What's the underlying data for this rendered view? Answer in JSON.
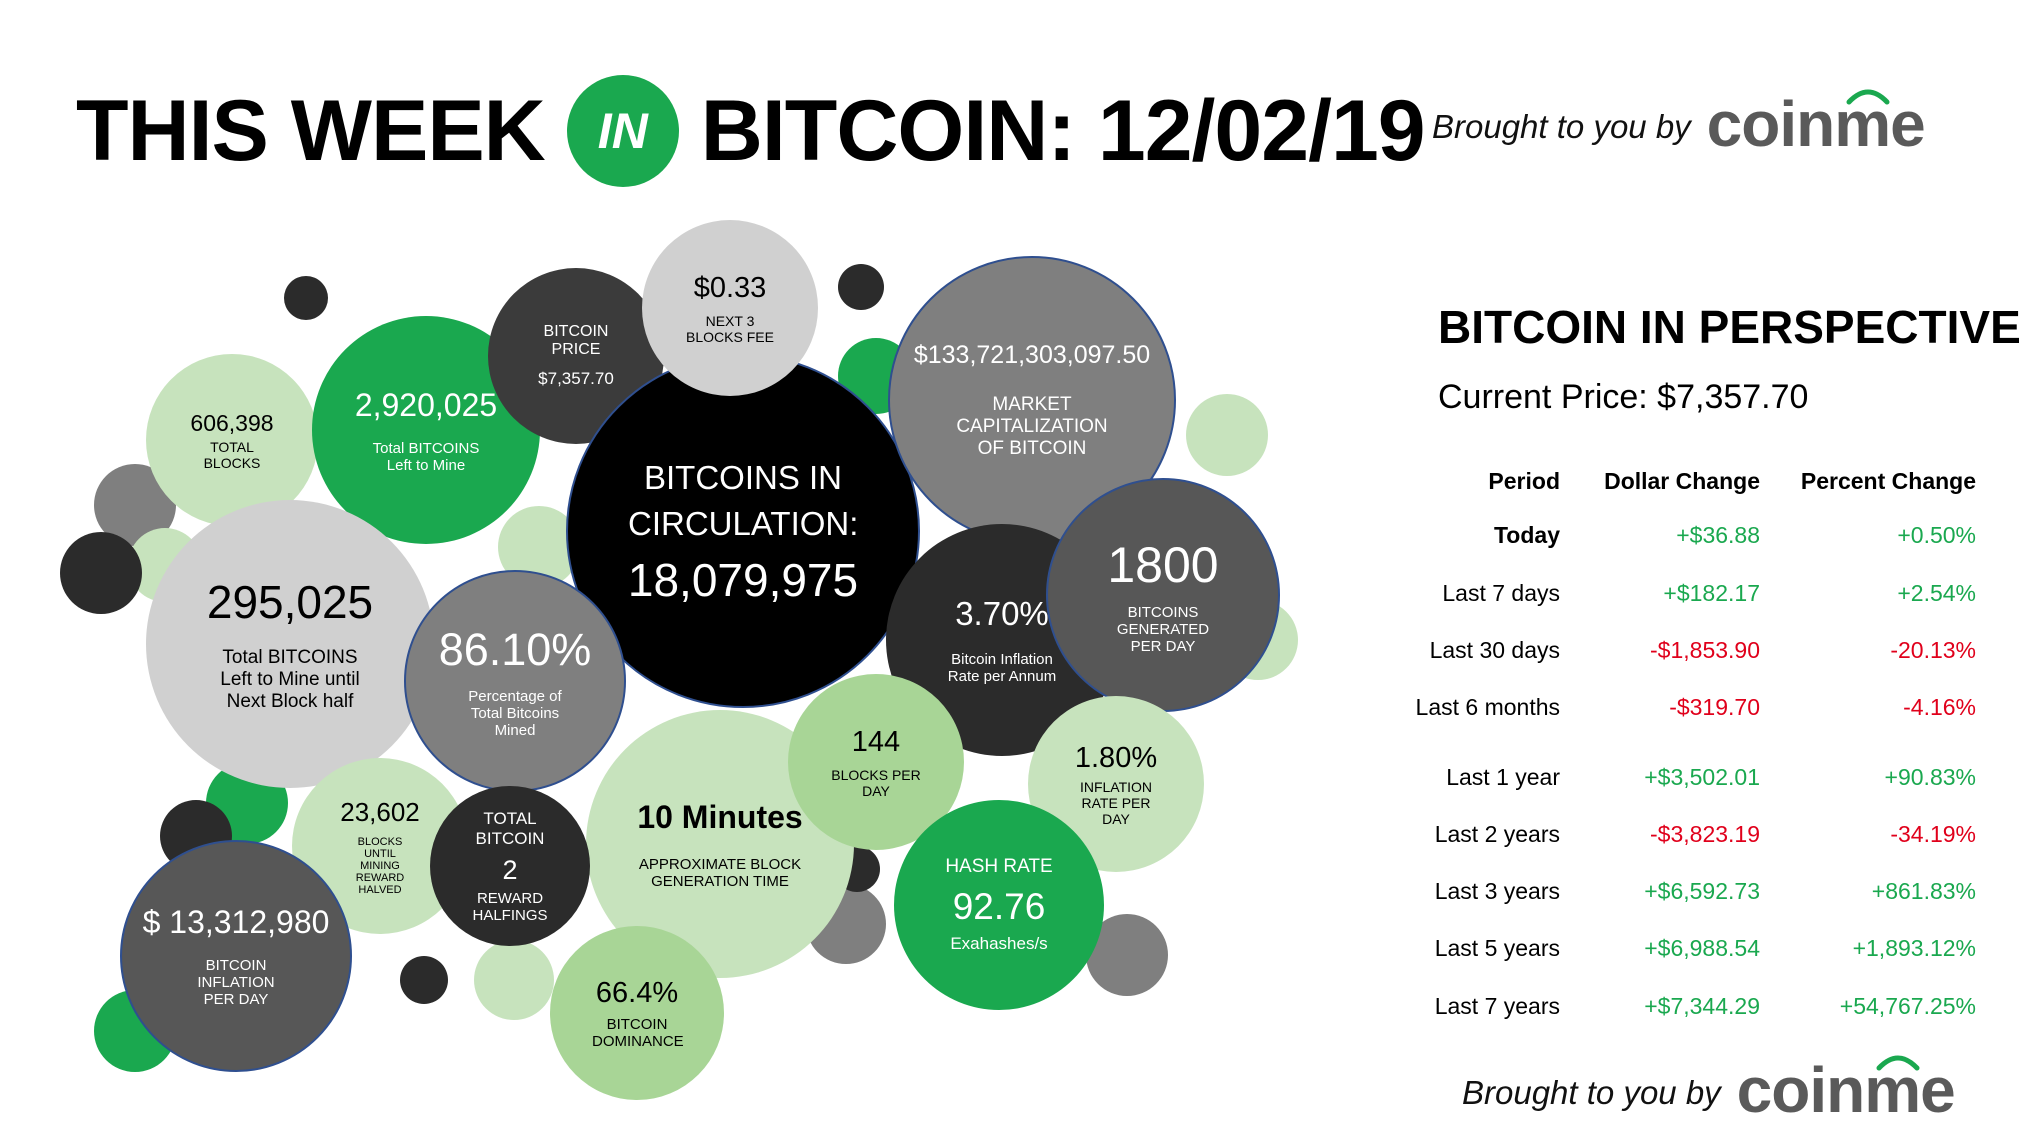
{
  "header": {
    "title_left": "THIS WEEK",
    "title_in": "IN",
    "title_right": "BITCOIN: 12/02/19"
  },
  "brand": {
    "brought_by": "Brought to you by",
    "logo_text": "coinme"
  },
  "colors": {
    "green": "#1aa84f",
    "light_green": "#c7e3bd",
    "negative_red": "#e0001b"
  },
  "bubbles": {
    "circulation": {
      "label": "BITCOINS IN CIRCULATION:",
      "value": "18,079,975"
    },
    "price": {
      "label": "BITCOIN PRICE",
      "value": "$7,357.70"
    },
    "fee": {
      "value": "$0.33",
      "label": "NEXT 3 BLOCKS FEE"
    },
    "market_cap": {
      "value": "$133,721,303,097.50",
      "label": "MARKET CAPITALIZATION OF BITCOIN"
    },
    "total_blocks": {
      "value": "606,398",
      "label": "TOTAL BLOCKS"
    },
    "left_to_mine": {
      "value": "2,920,025",
      "label": "Total BITCOINS Left to Mine"
    },
    "until_half": {
      "value": "295,025",
      "label": "Total BITCOINS Left to Mine until Next Block half"
    },
    "pct_mined": {
      "value": "86.10%",
      "label": "Percentage of Total Bitcoins Mined"
    },
    "inflation_rate": {
      "value": "3.70%",
      "label": "Bitcoin Inflation Rate per Annum"
    },
    "generated": {
      "value": "1800",
      "label": "BITCOINS GENERATED PER DAY"
    },
    "blocks_per_day": {
      "value": "144",
      "label": "BLOCKS PER DAY"
    },
    "inflation_180": {
      "value": "1.80%",
      "label": "INFLATION RATE PER DAY"
    },
    "blocks_until": {
      "value": "23,602",
      "label": "BLOCKS UNTIL MINING REWARD HALVED"
    },
    "halvings": {
      "label_top": "TOTAL BITCOIN",
      "value": "2",
      "label_bottom": "REWARD HALFINGS"
    },
    "gen_time": {
      "value": "10 Minutes",
      "label": "APPROXIMATE BLOCK GENERATION TIME"
    },
    "hash_rate": {
      "label": "HASH RATE",
      "value": "92.76",
      "unit": "Exahashes/s"
    },
    "inflation_day": {
      "value": "$ 13,312,980",
      "label": "BITCOIN INFLATION PER DAY"
    },
    "dominance": {
      "value": "66.4%",
      "label": "BITCOIN DOMINANCE"
    }
  },
  "perspective": {
    "title": "BITCOIN IN PERSPECTIVE",
    "current_price": "Current Price: $7,357.70",
    "headers": {
      "period": "Period",
      "dollar": "Dollar Change",
      "percent": "Percent Change"
    },
    "rows": [
      {
        "period": "Today",
        "dollar": "+$36.88",
        "percent": "+0.50%",
        "sign": "pos",
        "bold": true
      },
      {
        "period": "Last 7 days",
        "dollar": "+$182.17",
        "percent": "+2.54%",
        "sign": "pos"
      },
      {
        "period": "Last 30 days",
        "dollar": "-$1,853.90",
        "percent": "-20.13%",
        "sign": "neg"
      },
      {
        "period": "Last 6 months",
        "dollar": "-$319.70",
        "percent": "-4.16%",
        "sign": "neg"
      },
      {
        "period": "Last 1 year",
        "dollar": "+$3,502.01",
        "percent": "+90.83%",
        "sign": "pos"
      },
      {
        "period": "Last 2 years",
        "dollar": "-$3,823.19",
        "percent": "-34.19%",
        "sign": "neg"
      },
      {
        "period": "Last 3 years",
        "dollar": "+$6,592.73",
        "percent": "+861.83%",
        "sign": "pos"
      },
      {
        "period": "Last 5 years",
        "dollar": "+$6,988.54",
        "percent": "+1,893.12%",
        "sign": "pos"
      },
      {
        "period": "Last 7 years",
        "dollar": "+$7,344.29",
        "percent": "+54,767.25%",
        "sign": "pos"
      }
    ]
  }
}
